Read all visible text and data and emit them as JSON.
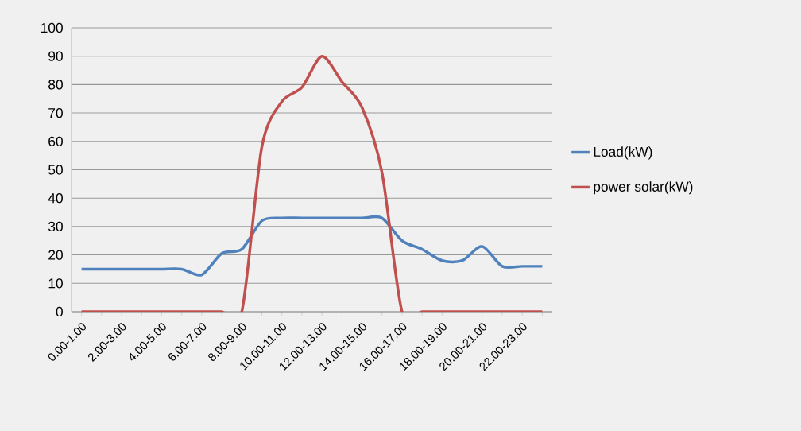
{
  "chart_data": {
    "type": "line",
    "categories": [
      "0.00-1.00",
      null,
      "2.00-3.00",
      null,
      "4.00-5.00",
      null,
      "6.00-7.00",
      null,
      "8.00-9.00",
      null,
      "10.00-11.00",
      null,
      "12.00-13.00",
      null,
      "14.00-15.00",
      null,
      "16.00-17.00",
      null,
      "18.00-19.00",
      null,
      "20.00-21.00",
      null,
      "22.00-23.00",
      null
    ],
    "series": [
      {
        "name": "Load(kW)",
        "color": "#4f81bd",
        "values": [
          15,
          15,
          15,
          15,
          15,
          15,
          13,
          20.5,
          22,
          32,
          33,
          33,
          33,
          33,
          33,
          33,
          25,
          22,
          18,
          18,
          23,
          16,
          16,
          16
        ]
      },
      {
        "name": "power solar(kW)",
        "color": "#c0504d",
        "values": [
          0,
          0,
          0,
          0,
          0,
          0,
          0,
          0,
          0,
          58,
          74,
          79,
          90,
          81,
          72,
          49,
          0,
          0,
          0,
          0,
          0,
          0,
          0,
          0
        ]
      }
    ],
    "ylim": [
      0,
      100
    ],
    "yticks": [
      0,
      10,
      20,
      30,
      40,
      50,
      60,
      70,
      80,
      90,
      100
    ],
    "grid": "y",
    "legend": "right",
    "marker": "none",
    "line_style": "solid"
  }
}
